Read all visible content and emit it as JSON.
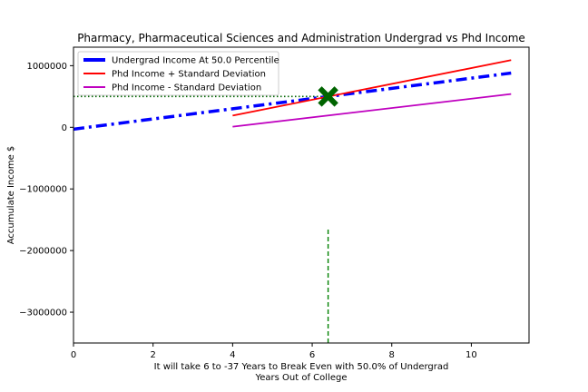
{
  "chart_data": {
    "type": "line",
    "title": "Pharmacy, Pharmaceutical Sciences and Administration Undergrad vs Phd Income",
    "xlabel": "It will take 6 to -37 Years to Break Even with 50.0% of Undergrad\nYears Out of College",
    "ylabel": "Accumulate Income $",
    "xlim": [
      0,
      11.45
    ],
    "ylim": [
      -3500000,
      1300000
    ],
    "xticks": [
      0,
      2,
      4,
      6,
      8,
      10
    ],
    "xtick_labels": [
      "0",
      "2",
      "4",
      "6",
      "8",
      "10"
    ],
    "yticks": [
      1000000,
      0,
      -1000000,
      -2000000,
      -3000000
    ],
    "ytick_labels": [
      "1000000",
      "0",
      "−1000000",
      "−2000000",
      "−3000000"
    ],
    "grid": false,
    "legend_position": "upper-left",
    "series": [
      {
        "name": "Undergrad Income At 50.0 Percentile",
        "color": "#0000ff",
        "style": "dash-dot",
        "x": [
          0,
          11
        ],
        "y": [
          -30000,
          880000
        ]
      },
      {
        "name": "Phd Income + Standard Deviation",
        "color": "#ff0000",
        "style": "solid",
        "x": [
          4,
          11
        ],
        "y": [
          190000,
          1090000
        ]
      },
      {
        "name": "Phd Income - Standard Deviation",
        "color": "#bf00bf",
        "style": "solid",
        "x": [
          4,
          11
        ],
        "y": [
          10000,
          540000
        ]
      }
    ],
    "annotations": {
      "breakeven_marker": {
        "x": 6.4,
        "y": 500000,
        "color": "#006400"
      },
      "horizontal_reference": {
        "y": 500000,
        "x_from": 0,
        "x_to": 6.4,
        "color": "#006400",
        "style": "dotted"
      },
      "vertical_reference": {
        "x": 6.4,
        "y_from": -3500000,
        "y_to": -1650000,
        "color": "#008000",
        "style": "dashed"
      }
    }
  }
}
